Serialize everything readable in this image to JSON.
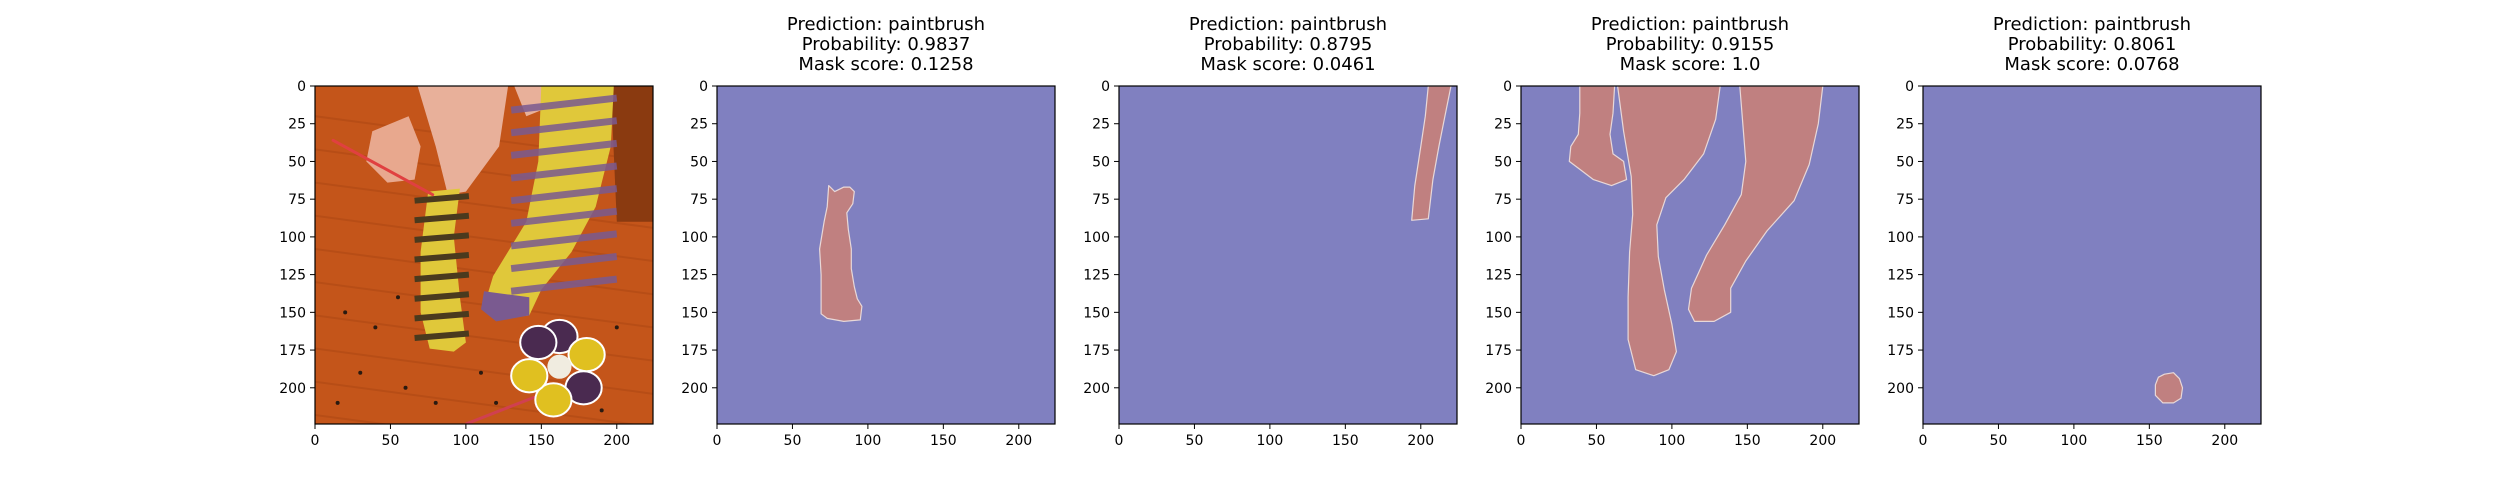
{
  "figure": {
    "background": "#ffffff"
  },
  "colors": {
    "mask_background": "#8080c0",
    "mask_foreground": "#c08080",
    "mask_edge": "#e8d8d8",
    "axes_frame": "#000000",
    "photo_floor": "#c4551a",
    "photo_sock_yellow": "#e0c83a",
    "photo_sock_dark": "#4a3a1e",
    "photo_sock_purple": "#7a5a90"
  },
  "chart_data": [
    {
      "type": "image",
      "content": "photo",
      "icons": [
        "feet-photo",
        "striped-socks",
        "paintbrush",
        "flower-paint-palette"
      ],
      "title_lines": [],
      "xlim": [
        0,
        224
      ],
      "ylim": [
        224,
        0
      ],
      "xticks": [
        0,
        50,
        100,
        150,
        200
      ],
      "yticks": [
        0,
        25,
        50,
        75,
        100,
        125,
        150,
        175,
        200
      ],
      "grid": false
    },
    {
      "type": "heatmap",
      "content": "mask",
      "title_lines": [
        "Prediction: paintbrush",
        "Probability: 0.9837",
        "Mask score: 0.1258"
      ],
      "xlim": [
        0,
        224
      ],
      "ylim": [
        224,
        0
      ],
      "xticks": [
        0,
        50,
        100,
        150,
        200
      ],
      "yticks": [
        0,
        25,
        50,
        75,
        100,
        125,
        150,
        175,
        200
      ],
      "grid": false,
      "regions": [
        [
          [
            74,
            66
          ],
          [
            78,
            70
          ],
          [
            84,
            67
          ],
          [
            88,
            67
          ],
          [
            91,
            70
          ],
          [
            90,
            78
          ],
          [
            86,
            84
          ],
          [
            87,
            95
          ],
          [
            89,
            108
          ],
          [
            89,
            121
          ],
          [
            91,
            133
          ],
          [
            93,
            141
          ],
          [
            96,
            146
          ],
          [
            95,
            155
          ],
          [
            84,
            156
          ],
          [
            73,
            154
          ],
          [
            69,
            151
          ],
          [
            69,
            138
          ],
          [
            69,
            125
          ],
          [
            68,
            108
          ],
          [
            71,
            90
          ],
          [
            73,
            80
          ]
        ]
      ]
    },
    {
      "type": "heatmap",
      "content": "mask",
      "title_lines": [
        "Prediction: paintbrush",
        "Probability: 0.8795",
        "Mask score: 0.0461"
      ],
      "xlim": [
        0,
        224
      ],
      "ylim": [
        224,
        0
      ],
      "xticks": [
        0,
        50,
        100,
        150,
        200
      ],
      "yticks": [
        0,
        25,
        50,
        75,
        100,
        125,
        150,
        175,
        200
      ],
      "grid": false,
      "regions": [
        [
          [
            205,
            0
          ],
          [
            220,
            0
          ],
          [
            216,
            20
          ],
          [
            212,
            40
          ],
          [
            208,
            62
          ],
          [
            205,
            88
          ],
          [
            194,
            89
          ],
          [
            196,
            66
          ],
          [
            200,
            40
          ],
          [
            203,
            20
          ]
        ]
      ]
    },
    {
      "type": "heatmap",
      "content": "mask",
      "title_lines": [
        "Prediction: paintbrush",
        "Probability: 0.9155",
        "Mask score: 1.0"
      ],
      "xlim": [
        0,
        224
      ],
      "ylim": [
        224,
        0
      ],
      "xticks": [
        0,
        50,
        100,
        150,
        200
      ],
      "yticks": [
        0,
        25,
        50,
        75,
        100,
        125,
        150,
        175,
        200
      ],
      "grid": false,
      "regions": [
        [
          [
            64,
            0
          ],
          [
            132,
            0
          ],
          [
            129,
            22
          ],
          [
            121,
            45
          ],
          [
            108,
            62
          ],
          [
            96,
            74
          ],
          [
            90,
            92
          ],
          [
            91,
            113
          ],
          [
            95,
            135
          ],
          [
            100,
            158
          ],
          [
            103,
            176
          ],
          [
            98,
            188
          ],
          [
            88,
            192
          ],
          [
            76,
            188
          ],
          [
            71,
            168
          ],
          [
            71,
            140
          ],
          [
            72,
            110
          ],
          [
            74,
            85
          ],
          [
            73,
            60
          ],
          [
            68,
            30
          ]
        ],
        [
          [
            145,
            0
          ],
          [
            200,
            0
          ],
          [
            197,
            25
          ],
          [
            191,
            52
          ],
          [
            181,
            76
          ],
          [
            163,
            96
          ],
          [
            149,
            116
          ],
          [
            139,
            134
          ],
          [
            139,
            150
          ],
          [
            128,
            156
          ],
          [
            115,
            156
          ],
          [
            111,
            148
          ],
          [
            113,
            134
          ],
          [
            118,
            123
          ],
          [
            123,
            112
          ],
          [
            135,
            92
          ],
          [
            146,
            72
          ],
          [
            149,
            50
          ]
        ],
        [
          [
            39,
            0
          ],
          [
            62,
            0
          ],
          [
            61,
            18
          ],
          [
            59,
            32
          ],
          [
            61,
            45
          ],
          [
            68,
            50
          ],
          [
            70,
            62
          ],
          [
            60,
            66
          ],
          [
            48,
            62
          ],
          [
            40,
            56
          ],
          [
            32,
            50
          ],
          [
            33,
            40
          ],
          [
            38,
            32
          ],
          [
            39,
            18
          ]
        ]
      ]
    },
    {
      "type": "heatmap",
      "content": "mask",
      "title_lines": [
        "Prediction: paintbrush",
        "Probability: 0.8061",
        "Mask score: 0.0768"
      ],
      "xlim": [
        0,
        224
      ],
      "ylim": [
        224,
        0
      ],
      "xticks": [
        0,
        50,
        100,
        150,
        200
      ],
      "yticks": [
        0,
        25,
        50,
        75,
        100,
        125,
        150,
        175,
        200
      ],
      "grid": false,
      "regions": [
        [
          [
            160,
            191
          ],
          [
            166,
            190
          ],
          [
            170,
            194
          ],
          [
            172,
            200
          ],
          [
            171,
            207
          ],
          [
            166,
            210
          ],
          [
            159,
            210
          ],
          [
            154,
            205
          ],
          [
            154,
            198
          ],
          [
            156,
            193
          ]
        ]
      ]
    }
  ]
}
